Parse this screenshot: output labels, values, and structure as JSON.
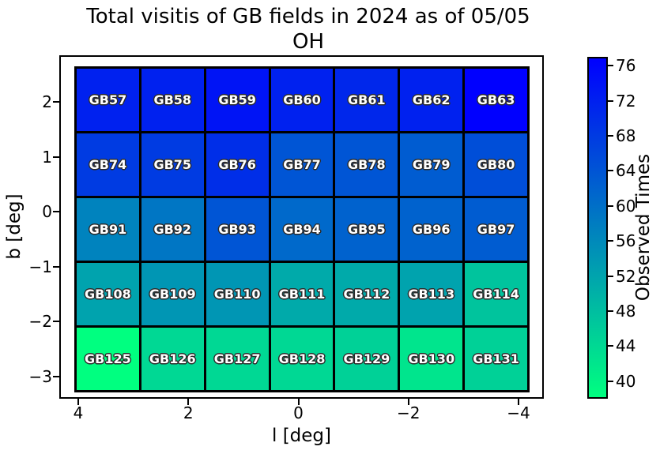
{
  "title": {
    "line1": "Total visitis of GB fields in 2024 as of 05/05",
    "line2": "OH"
  },
  "chart_data": {
    "type": "heatmap",
    "title": "Total visitis of GB fields in 2024 as of 05/05 — OH",
    "xlabel": "l [deg]",
    "ylabel": "b [deg]",
    "x_tick_labels": [
      "4",
      "2",
      "0",
      "−2",
      "−4"
    ],
    "y_tick_labels": [
      "2",
      "1",
      "0",
      "−1",
      "−2",
      "−3"
    ],
    "x_axis_inverted": true,
    "grid_shape": {
      "columns": 7,
      "rows": 5
    },
    "colorbar": {
      "label": "Observed Times",
      "ticks": [
        76,
        72,
        68,
        64,
        60,
        56,
        52,
        48,
        44,
        40
      ],
      "vmin": 38,
      "vmax": 77,
      "colormap": "winter_r",
      "color_at_vmax": "#0000ff",
      "color_at_vmin": "#00ff80"
    },
    "values_estimated_from_color": true,
    "rows": [
      {
        "cells": [
          {
            "label": "GB57",
            "value": 72
          },
          {
            "label": "GB58",
            "value": 72
          },
          {
            "label": "GB59",
            "value": 74
          },
          {
            "label": "GB60",
            "value": 72
          },
          {
            "label": "GB61",
            "value": 71
          },
          {
            "label": "GB62",
            "value": 72
          },
          {
            "label": "GB63",
            "value": 77
          }
        ]
      },
      {
        "cells": [
          {
            "label": "GB74",
            "value": 68
          },
          {
            "label": "GB75",
            "value": 68
          },
          {
            "label": "GB76",
            "value": 70
          },
          {
            "label": "GB77",
            "value": 64
          },
          {
            "label": "GB78",
            "value": 64
          },
          {
            "label": "GB79",
            "value": 63
          },
          {
            "label": "GB80",
            "value": 65
          }
        ]
      },
      {
        "cells": [
          {
            "label": "GB91",
            "value": 57
          },
          {
            "label": "GB92",
            "value": 59
          },
          {
            "label": "GB93",
            "value": 64
          },
          {
            "label": "GB94",
            "value": 61
          },
          {
            "label": "GB95",
            "value": 62
          },
          {
            "label": "GB96",
            "value": 62
          },
          {
            "label": "GB97",
            "value": 63
          }
        ]
      },
      {
        "cells": [
          {
            "label": "GB108",
            "value": 52
          },
          {
            "label": "GB109",
            "value": 54
          },
          {
            "label": "GB110",
            "value": 54
          },
          {
            "label": "GB111",
            "value": 51
          },
          {
            "label": "GB112",
            "value": 51
          },
          {
            "label": "GB113",
            "value": 52
          },
          {
            "label": "GB114",
            "value": 47
          }
        ]
      },
      {
        "cells": [
          {
            "label": "GB125",
            "value": 38
          },
          {
            "label": "GB126",
            "value": 44
          },
          {
            "label": "GB127",
            "value": 44
          },
          {
            "label": "GB128",
            "value": 44
          },
          {
            "label": "GB129",
            "value": 45
          },
          {
            "label": "GB130",
            "value": 42
          },
          {
            "label": "GB131",
            "value": 45
          }
        ]
      }
    ]
  }
}
